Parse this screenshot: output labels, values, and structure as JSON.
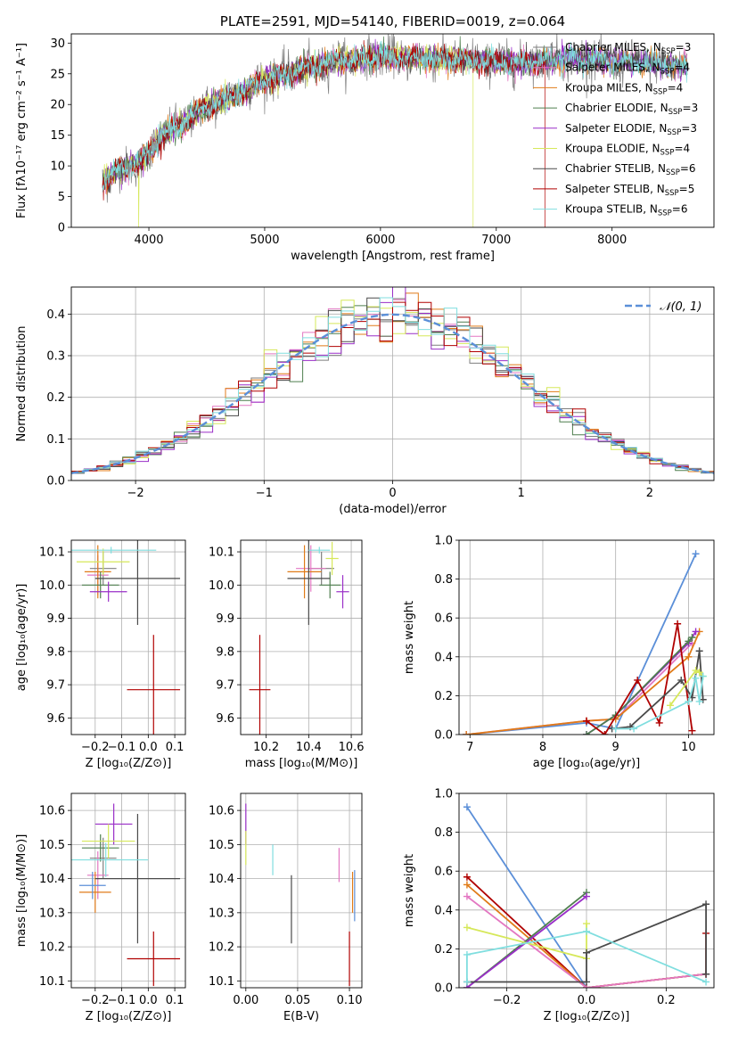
{
  "colors": {
    "chabrier_miles": "#7f7f7f",
    "salpeter_miles": "#e377c2",
    "kroupa_miles": "#e07b18",
    "chabrier_elodie": "#4f7f4f",
    "salpeter_elodie": "#9a2fc8",
    "kroupa_elodie": "#d6e85a",
    "chabrier_stelib": "#4a4a4a",
    "salpeter_stelib": "#b00000",
    "kroupa_stelib": "#80dedf",
    "gaussian": "#5b8fd8",
    "grid": "#b0b0b0"
  },
  "chart_data": [
    {
      "id": "spectrum",
      "type": "line",
      "title": "PLATE=2591, MJD=54140, FIBERID=0019, z=0.064",
      "xlabel": "wavelength [Angstrom, rest frame]",
      "ylabel": "Flux [fλ10⁻¹⁷ erg cm⁻² s⁻¹ A⁻¹]",
      "xlim": [
        3330,
        8880
      ],
      "ylim": [
        0,
        31.5
      ],
      "xticks": [
        4000,
        5000,
        6000,
        7000,
        8000
      ],
      "yticks": [
        0,
        5,
        10,
        15,
        20,
        25,
        30
      ],
      "grid": false,
      "legend_position": "lower-right",
      "continuum": [
        [
          3600,
          7
        ],
        [
          3700,
          9
        ],
        [
          3800,
          9.5
        ],
        [
          3900,
          10.5
        ],
        [
          4000,
          12
        ],
        [
          4100,
          14.5
        ],
        [
          4200,
          16
        ],
        [
          4300,
          17
        ],
        [
          4400,
          18.5
        ],
        [
          4500,
          19.5
        ],
        [
          4600,
          20.5
        ],
        [
          4700,
          21
        ],
        [
          4800,
          22
        ],
        [
          4900,
          23
        ],
        [
          5000,
          24
        ],
        [
          5100,
          24.5
        ],
        [
          5200,
          25
        ],
        [
          5300,
          25.5
        ],
        [
          5400,
          26
        ],
        [
          5500,
          26.5
        ],
        [
          5600,
          27
        ],
        [
          5800,
          27.3
        ],
        [
          6000,
          27.8
        ],
        [
          6200,
          27.6
        ],
        [
          6400,
          27.5
        ],
        [
          6600,
          27.4
        ],
        [
          6800,
          27.2
        ],
        [
          7000,
          27.0
        ],
        [
          7200,
          26.8
        ],
        [
          7400,
          27.2
        ],
        [
          7600,
          27.5
        ],
        [
          7800,
          27.3
        ],
        [
          8000,
          27.0
        ],
        [
          8200,
          26.8
        ],
        [
          8400,
          26.5
        ],
        [
          8600,
          26.2
        ]
      ],
      "series": [
        {
          "name": "Chabrier MILES, N_SSP=3",
          "label_main": "Chabrier MILES, N",
          "label_sub": "SSP",
          "label_end": "=3",
          "color_key": "chabrier_miles"
        },
        {
          "name": "Salpeter MILES, N_SSP=4",
          "label_main": "Salpeter MILES, N",
          "label_sub": "SSP",
          "label_end": "=4",
          "color_key": "salpeter_miles"
        },
        {
          "name": "Kroupa MILES, N_SSP=4",
          "label_main": "Kroupa MILES, N",
          "label_sub": "SSP",
          "label_end": "=4",
          "color_key": "kroupa_miles"
        },
        {
          "name": "Chabrier ELODIE, N_SSP=3",
          "label_main": "Chabrier ELODIE, N",
          "label_sub": "SSP",
          "label_end": "=3",
          "color_key": "chabrier_elodie"
        },
        {
          "name": "Salpeter ELODIE, N_SSP=3",
          "label_main": "Salpeter ELODIE, N",
          "label_sub": "SSP",
          "label_end": "=3",
          "color_key": "salpeter_elodie"
        },
        {
          "name": "Kroupa ELODIE, N_SSP=4",
          "label_main": "Kroupa ELODIE, N",
          "label_sub": "SSP",
          "label_end": "=4",
          "color_key": "kroupa_elodie"
        },
        {
          "name": "Chabrier STELIB, N_SSP=6",
          "label_main": "Chabrier STELIB, N",
          "label_sub": "SSP",
          "label_end": "=6",
          "color_key": "chabrier_stelib"
        },
        {
          "name": "Salpeter STELIB, N_SSP=5",
          "label_main": "Salpeter STELIB, N",
          "label_sub": "SSP",
          "label_end": "=5",
          "color_key": "salpeter_stelib"
        },
        {
          "name": "Kroupa STELIB, N_SSP=6",
          "label_main": "Kroupa STELIB, N",
          "label_sub": "SSP",
          "label_end": "=6",
          "color_key": "kroupa_stelib"
        }
      ]
    },
    {
      "id": "histogram",
      "type": "bar",
      "xlabel": "(data-model)/error",
      "ylabel": "Normed distribution",
      "xlim": [
        -2.5,
        2.5
      ],
      "ylim": [
        0,
        0.465
      ],
      "xticks": [
        -2,
        -1,
        0,
        1,
        2
      ],
      "yticks": [
        0.0,
        0.1,
        0.2,
        0.3,
        0.4
      ],
      "grid": true,
      "legend_position": "top-right",
      "legend_label": "𝒩(0, 1)",
      "gaussian": {
        "mu": 0,
        "sigma": 1
      }
    },
    {
      "id": "age_vs_Z",
      "type": "scatter",
      "xlabel": "Z [log₁₀(Z/Z⊙)]",
      "ylabel": "age  [log₁₀(age/yr)]",
      "xlim": [
        -0.29,
        0.14
      ],
      "ylim": [
        9.55,
        10.135
      ],
      "xticks": [
        -0.2,
        -0.1,
        0.0,
        0.1
      ],
      "yticks": [
        9.6,
        9.7,
        9.8,
        9.9,
        10.0,
        10.1
      ],
      "grid": true,
      "points": [
        {
          "s": "chabrier_miles",
          "x": -0.17,
          "xerr": 0.05,
          "y": 10.05,
          "yerr": 0.05
        },
        {
          "s": "salpeter_miles",
          "x": -0.19,
          "xerr": 0.04,
          "y": 10.03,
          "yerr": 0.06
        },
        {
          "s": "kroupa_miles",
          "x": -0.19,
          "xerr": 0.05,
          "y": 10.04,
          "yerr": 0.08
        },
        {
          "s": "chabrier_elodie",
          "x": -0.18,
          "xerr": 0.07,
          "y": 10.0,
          "yerr": 0.04
        },
        {
          "s": "salpeter_elodie",
          "x": -0.15,
          "xerr": 0.07,
          "y": 9.98,
          "yerr": 0.03
        },
        {
          "s": "kroupa_elodie",
          "x": -0.17,
          "xerr": 0.1,
          "y": 10.07,
          "yerr": 0.04
        },
        {
          "s": "chabrier_stelib",
          "x": -0.04,
          "xerr": 0.16,
          "y": 10.02,
          "yerr": 0.14
        },
        {
          "s": "salpeter_stelib",
          "x": 0.02,
          "xerr": 0.1,
          "y": 9.685,
          "yerr": 0.165
        },
        {
          "s": "kroupa_stelib",
          "x": -0.14,
          "xerr": 0.17,
          "y": 10.105,
          "yerr": 0.01
        }
      ]
    },
    {
      "id": "age_vs_mass",
      "type": "scatter",
      "xlabel": "mass [log₁₀(M/M⊙)]",
      "ylabel": "",
      "xlim": [
        10.08,
        10.65
      ],
      "ylim": [
        9.55,
        10.135
      ],
      "xticks": [
        10.2,
        10.4,
        10.6
      ],
      "yticks": [
        9.6,
        9.7,
        9.8,
        9.9,
        10.0,
        10.1
      ],
      "grid": true,
      "points": [
        {
          "s": "chabrier_miles",
          "x": 10.46,
          "xerr": 0.06,
          "y": 10.05,
          "yerr": 0.05
        },
        {
          "s": "salpeter_miles",
          "x": 10.41,
          "xerr": 0.07,
          "y": 10.05,
          "yerr": 0.07
        },
        {
          "s": "kroupa_miles",
          "x": 10.38,
          "xerr": 0.08,
          "y": 10.04,
          "yerr": 0.08
        },
        {
          "s": "chabrier_elodie",
          "x": 10.5,
          "xerr": 0.05,
          "y": 10.0,
          "yerr": 0.04
        },
        {
          "s": "salpeter_elodie",
          "x": 10.56,
          "xerr": 0.03,
          "y": 9.98,
          "yerr": 0.05
        },
        {
          "s": "kroupa_elodie",
          "x": 10.51,
          "xerr": 0.03,
          "y": 10.08,
          "yerr": 0.05
        },
        {
          "s": "chabrier_stelib",
          "x": 10.4,
          "xerr": 0.1,
          "y": 10.02,
          "yerr": 0.14
        },
        {
          "s": "salpeter_stelib",
          "x": 10.17,
          "xerr": 0.05,
          "y": 9.685,
          "yerr": 0.165
        },
        {
          "s": "kroupa_stelib",
          "x": 10.45,
          "xerr": 0.05,
          "y": 10.105,
          "yerr": 0.01
        }
      ]
    },
    {
      "id": "weight_vs_age",
      "type": "line",
      "xlabel": "age  [log₁₀(age/yr)]",
      "ylabel": "mass weight",
      "xlim": [
        6.85,
        10.35
      ],
      "ylim": [
        0,
        1.0
      ],
      "xticks": [
        7,
        8,
        9,
        10
      ],
      "yticks": [
        0.0,
        0.2,
        0.4,
        0.6,
        0.8,
        1.0
      ],
      "grid": true,
      "series": [
        {
          "s": "gaussian",
          "x": [
            6.95,
            8.6,
            9.0,
            10.1
          ],
          "y": [
            0.0,
            0.06,
            0.03,
            0.93
          ]
        },
        {
          "s": "salpeter_miles",
          "x": [
            6.95,
            8.6,
            9.0,
            10.05
          ],
          "y": [
            0.0,
            0.07,
            0.08,
            0.47
          ]
        },
        {
          "s": "kroupa_miles",
          "x": [
            6.95,
            8.6,
            9.0,
            10.0,
            10.15
          ],
          "y": [
            0.0,
            0.07,
            0.08,
            0.4,
            0.53
          ]
        },
        {
          "s": "salpeter_elodie",
          "x": [
            8.6,
            9.0,
            10.0,
            10.1
          ],
          "y": [
            0.0,
            0.1,
            0.47,
            0.53
          ]
        },
        {
          "s": "chabrier_elodie",
          "x": [
            8.6,
            9.0,
            10.0,
            10.05
          ],
          "y": [
            0.0,
            0.1,
            0.48,
            0.5
          ]
        },
        {
          "s": "salpeter_stelib",
          "x": [
            8.6,
            8.85,
            9.3,
            9.6,
            9.85,
            10.05
          ],
          "y": [
            0.07,
            0.0,
            0.28,
            0.06,
            0.57,
            0.02
          ]
        },
        {
          "s": "chabrier_stelib",
          "x": [
            8.95,
            9.2,
            9.9,
            10.05,
            10.15,
            10.2
          ],
          "y": [
            0.03,
            0.04,
            0.28,
            0.19,
            0.43,
            0.18
          ]
        },
        {
          "s": "kroupa_elodie",
          "x": [
            9.75,
            10.1,
            10.15,
            10.2
          ],
          "y": [
            0.15,
            0.33,
            0.32,
            0.3
          ]
        },
        {
          "s": "kroupa_stelib",
          "x": [
            9.0,
            9.25,
            10.0,
            10.1,
            10.15,
            10.2
          ],
          "y": [
            0.03,
            0.03,
            0.17,
            0.29,
            0.17,
            0.3
          ]
        }
      ]
    },
    {
      "id": "mass_vs_Z",
      "type": "scatter",
      "xlabel": "Z [log₁₀(Z/Z⊙)]",
      "ylabel": "mass [log₁₀(M/M⊙)]",
      "xlim": [
        -0.29,
        0.14
      ],
      "ylim": [
        10.08,
        10.65
      ],
      "xticks": [
        -0.2,
        -0.1,
        0.0,
        0.1
      ],
      "yticks": [
        10.1,
        10.2,
        10.3,
        10.4,
        10.5,
        10.6
      ],
      "grid": true,
      "points": [
        {
          "s": "chabrier_miles",
          "x": -0.17,
          "xerr": 0.05,
          "y": 10.46,
          "yerr": 0.06
        },
        {
          "s": "salpeter_miles",
          "x": -0.19,
          "xerr": 0.04,
          "y": 10.41,
          "yerr": 0.07
        },
        {
          "s": "kroupa_miles",
          "x": -0.2,
          "xerr": 0.06,
          "y": 10.36,
          "yerr": 0.06
        },
        {
          "s": "chabrier_elodie",
          "x": -0.18,
          "xerr": 0.07,
          "y": 10.49,
          "yerr": 0.04
        },
        {
          "s": "salpeter_elodie",
          "x": -0.13,
          "xerr": 0.07,
          "y": 10.56,
          "yerr": 0.06
        },
        {
          "s": "kroupa_elodie",
          "x": -0.15,
          "xerr": 0.1,
          "y": 10.51,
          "yerr": 0.05
        },
        {
          "s": "chabrier_stelib",
          "x": -0.04,
          "xerr": 0.16,
          "y": 10.4,
          "yerr": 0.19
        },
        {
          "s": "salpeter_stelib",
          "x": 0.02,
          "xerr": 0.1,
          "y": 10.165,
          "yerr": 0.08
        },
        {
          "s": "kroupa_stelib",
          "x": -0.16,
          "xerr": 0.16,
          "y": 10.455,
          "yerr": 0.05
        },
        {
          "s": "gaussian",
          "x": -0.21,
          "xerr": 0.05,
          "y": 10.38,
          "yerr": 0.04
        }
      ]
    },
    {
      "id": "mass_vs_EBV",
      "type": "scatter",
      "xlabel": "E(B-V)",
      "ylabel": "",
      "xlim": [
        -0.005,
        0.112
      ],
      "ylim": [
        10.08,
        10.65
      ],
      "xticks": [
        0.0,
        0.05,
        0.1
      ],
      "yticks": [
        10.1,
        10.2,
        10.3,
        10.4,
        10.5,
        10.6
      ],
      "grid": true,
      "points": [
        {
          "s": "salpeter_elodie",
          "x": 0.0,
          "xerr": 0,
          "y": 10.56,
          "yerr": 0.06
        },
        {
          "s": "kroupa_elodie",
          "x": 0.0,
          "xerr": 0,
          "y": 10.49,
          "yerr": 0.05
        },
        {
          "s": "kroupa_stelib",
          "x": 0.026,
          "xerr": 0,
          "y": 10.455,
          "yerr": 0.045
        },
        {
          "s": "chabrier_stelib",
          "x": 0.044,
          "xerr": 0,
          "y": 10.31,
          "yerr": 0.1
        },
        {
          "s": "salpeter_miles",
          "x": 0.09,
          "xerr": 0,
          "y": 10.44,
          "yerr": 0.05
        },
        {
          "s": "kroupa_miles",
          "x": 0.103,
          "xerr": 0,
          "y": 10.36,
          "yerr": 0.06
        },
        {
          "s": "gaussian",
          "x": 0.105,
          "xerr": 0,
          "y": 10.35,
          "yerr": 0.075
        },
        {
          "s": "salpeter_stelib",
          "x": 0.1,
          "xerr": 0,
          "y": 10.165,
          "yerr": 0.08
        }
      ]
    },
    {
      "id": "weight_vs_Z",
      "type": "line",
      "xlabel": "Z [log₁₀(Z/Z⊙)]",
      "ylabel": "mass weight",
      "xlim": [
        -0.32,
        0.32
      ],
      "ylim": [
        0,
        1.0
      ],
      "xticks": [
        -0.2,
        0.0,
        0.2
      ],
      "yticks": [
        0.0,
        0.2,
        0.4,
        0.6,
        0.8,
        1.0
      ],
      "grid": true,
      "series": [
        {
          "s": "gaussian",
          "x": [
            -0.3,
            0.0,
            0.3
          ],
          "y": [
            0.93,
            0.0,
            0.07
          ]
        },
        {
          "s": "salpeter_stelib",
          "x": [
            -0.3,
            0.0,
            0.3,
            0.3
          ],
          "y": [
            0.57,
            0.0,
            0.07,
            0.28
          ]
        },
        {
          "s": "kroupa_miles",
          "x": [
            -0.3,
            0.0,
            0.3
          ],
          "y": [
            0.53,
            0.0,
            0.07
          ]
        },
        {
          "s": "salpeter_miles",
          "x": [
            -0.3,
            0.0,
            0.3
          ],
          "y": [
            0.47,
            0.0,
            0.07
          ]
        },
        {
          "s": "chabrier_elodie",
          "x": [
            -0.3,
            0.0
          ],
          "y": [
            0.0,
            0.49
          ]
        },
        {
          "s": "salpeter_elodie",
          "x": [
            -0.3,
            0.0
          ],
          "y": [
            0.0,
            0.47
          ]
        },
        {
          "s": "kroupa_elodie",
          "x": [
            -0.3,
            0.0,
            0.0
          ],
          "y": [
            0.31,
            0.15,
            0.33
          ]
        },
        {
          "s": "chabrier_stelib",
          "x": [
            -0.3,
            0.0,
            0.0,
            0.3,
            0.3
          ],
          "y": [
            0.03,
            0.03,
            0.18,
            0.43,
            0.07
          ]
        },
        {
          "s": "kroupa_stelib",
          "x": [
            -0.3,
            -0.3,
            0.0,
            0.3
          ],
          "y": [
            0.03,
            0.17,
            0.29,
            0.03
          ]
        }
      ]
    }
  ]
}
